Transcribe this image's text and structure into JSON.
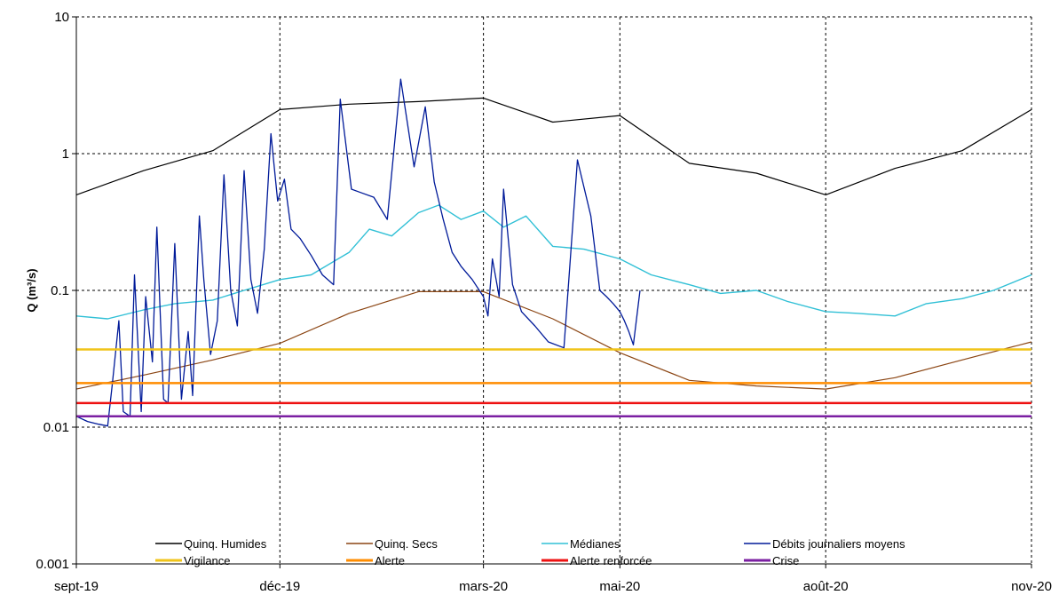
{
  "chart_data": {
    "type": "line",
    "title": "",
    "xlabel": "",
    "ylabel": "Q (m³/s)",
    "yscale": "log",
    "ylim": [
      0.001,
      10
    ],
    "y_ticks": [
      "0.001",
      "0.01",
      "0.1",
      "1",
      "10"
    ],
    "x_ticks": [
      "sept-19",
      "déc-19",
      "mars-20",
      "mai-20",
      "août-20",
      "nov-20"
    ],
    "grid": true,
    "legend_position": "bottom",
    "series": [
      {
        "name": "Quinq. Humides",
        "color": "#000000",
        "x": [
          "2019-09-01",
          "2019-10-01",
          "2019-11-01",
          "2019-12-01",
          "2020-01-01",
          "2020-02-01",
          "2020-03-01",
          "2020-04-01",
          "2020-05-01",
          "2020-06-01",
          "2020-07-01",
          "2020-08-01",
          "2020-09-01",
          "2020-10-01",
          "2020-11-01"
        ],
        "values": [
          0.5,
          0.75,
          1.05,
          2.1,
          2.3,
          2.4,
          2.55,
          1.7,
          1.9,
          0.85,
          0.72,
          0.5,
          0.78,
          1.05,
          2.1
        ]
      },
      {
        "name": "Quinq. Secs",
        "color": "#8b4513",
        "x": [
          "2019-09-01",
          "2019-10-01",
          "2019-11-01",
          "2019-12-01",
          "2020-01-01",
          "2020-02-01",
          "2020-03-01",
          "2020-04-01",
          "2020-05-01",
          "2020-06-01",
          "2020-07-01",
          "2020-08-01",
          "2020-09-01",
          "2020-10-01",
          "2020-11-01"
        ],
        "values": [
          0.019,
          0.024,
          0.031,
          0.041,
          0.068,
          0.098,
          0.098,
          0.062,
          0.035,
          0.022,
          0.02,
          0.019,
          0.023,
          0.031,
          0.042
        ]
      },
      {
        "name": "Médianes",
        "color": "#31c0d6",
        "x": [
          "2019-09-01",
          "2019-09-15",
          "2019-10-01",
          "2019-10-15",
          "2019-11-01",
          "2019-11-15",
          "2019-12-01",
          "2019-12-15",
          "2020-01-01",
          "2020-01-10",
          "2020-01-20",
          "2020-02-01",
          "2020-02-10",
          "2020-02-20",
          "2020-03-01",
          "2020-03-10",
          "2020-03-20",
          "2020-04-01",
          "2020-04-15",
          "2020-05-01",
          "2020-05-15",
          "2020-06-01",
          "2020-06-15",
          "2020-07-01",
          "2020-07-15",
          "2020-08-01",
          "2020-08-15",
          "2020-09-01",
          "2020-09-15",
          "2020-10-01",
          "2020-10-15",
          "2020-11-01"
        ],
        "values": [
          0.065,
          0.062,
          0.072,
          0.08,
          0.085,
          0.1,
          0.12,
          0.13,
          0.19,
          0.28,
          0.25,
          0.37,
          0.42,
          0.33,
          0.38,
          0.29,
          0.35,
          0.21,
          0.2,
          0.17,
          0.13,
          0.11,
          0.095,
          0.1,
          0.083,
          0.07,
          0.068,
          0.065,
          0.08,
          0.087,
          0.1,
          0.13
        ]
      },
      {
        "name": "Débits journaliers moyens",
        "color": "#001a99",
        "x": [
          "2019-09-01",
          "2019-09-06",
          "2019-09-11",
          "2019-09-15",
          "2019-09-17",
          "2019-09-20",
          "2019-09-22",
          "2019-09-25",
          "2019-09-27",
          "2019-09-30",
          "2019-10-02",
          "2019-10-05",
          "2019-10-07",
          "2019-10-10",
          "2019-10-12",
          "2019-10-15",
          "2019-10-18",
          "2019-10-21",
          "2019-10-23",
          "2019-10-26",
          "2019-10-28",
          "2019-10-31",
          "2019-11-03",
          "2019-11-06",
          "2019-11-09",
          "2019-11-12",
          "2019-11-15",
          "2019-11-18",
          "2019-11-21",
          "2019-11-24",
          "2019-11-27",
          "2019-11-30",
          "2019-12-03",
          "2019-12-06",
          "2019-12-10",
          "2019-12-15",
          "2019-12-20",
          "2019-12-25",
          "2019-12-28",
          "2020-01-02",
          "2020-01-06",
          "2020-01-12",
          "2020-01-18",
          "2020-01-24",
          "2020-01-30",
          "2020-02-04",
          "2020-02-08",
          "2020-02-12",
          "2020-02-16",
          "2020-02-20",
          "2020-02-25",
          "2020-03-01",
          "2020-03-03",
          "2020-03-05",
          "2020-03-08",
          "2020-03-10",
          "2020-03-14",
          "2020-03-18",
          "2020-03-24",
          "2020-03-30",
          "2020-04-06",
          "2020-04-12",
          "2020-04-18",
          "2020-04-22",
          "2020-04-25",
          "2020-04-28",
          "2020-05-01",
          "2020-05-03",
          "2020-05-05",
          "2020-05-07",
          "2020-05-10"
        ],
        "values": [
          0.012,
          0.011,
          0.0105,
          0.0102,
          0.02,
          0.06,
          0.013,
          0.012,
          0.13,
          0.013,
          0.09,
          0.03,
          0.29,
          0.016,
          0.015,
          0.22,
          0.016,
          0.05,
          0.017,
          0.35,
          0.12,
          0.034,
          0.06,
          0.7,
          0.1,
          0.055,
          0.75,
          0.12,
          0.068,
          0.2,
          1.4,
          0.45,
          0.65,
          0.28,
          0.24,
          0.18,
          0.13,
          0.11,
          2.5,
          0.55,
          0.52,
          0.48,
          0.33,
          3.5,
          0.8,
          2.2,
          0.62,
          0.33,
          0.19,
          0.15,
          0.12,
          0.09,
          0.065,
          0.17,
          0.09,
          0.55,
          0.11,
          0.07,
          0.055,
          0.042,
          0.038,
          0.9,
          0.35,
          0.1,
          0.09,
          0.08,
          0.07,
          0.06,
          0.05,
          0.04,
          0.1
        ]
      },
      {
        "name": "Vigilance",
        "color": "#f0c419",
        "x": [
          "2019-09-01",
          "2020-11-01"
        ],
        "values": [
          0.037,
          0.037
        ]
      },
      {
        "name": "Alerte",
        "color": "#ff8c00",
        "x": [
          "2019-09-01",
          "2020-11-01"
        ],
        "values": [
          0.021,
          0.021
        ]
      },
      {
        "name": "Alerte renforcée",
        "color": "#ee1111",
        "x": [
          "2019-09-01",
          "2020-11-01"
        ],
        "values": [
          0.015,
          0.015
        ]
      },
      {
        "name": "Crise",
        "color": "#7b1fa2",
        "x": [
          "2019-09-01",
          "2020-11-01"
        ],
        "values": [
          0.012,
          0.012
        ]
      }
    ]
  }
}
